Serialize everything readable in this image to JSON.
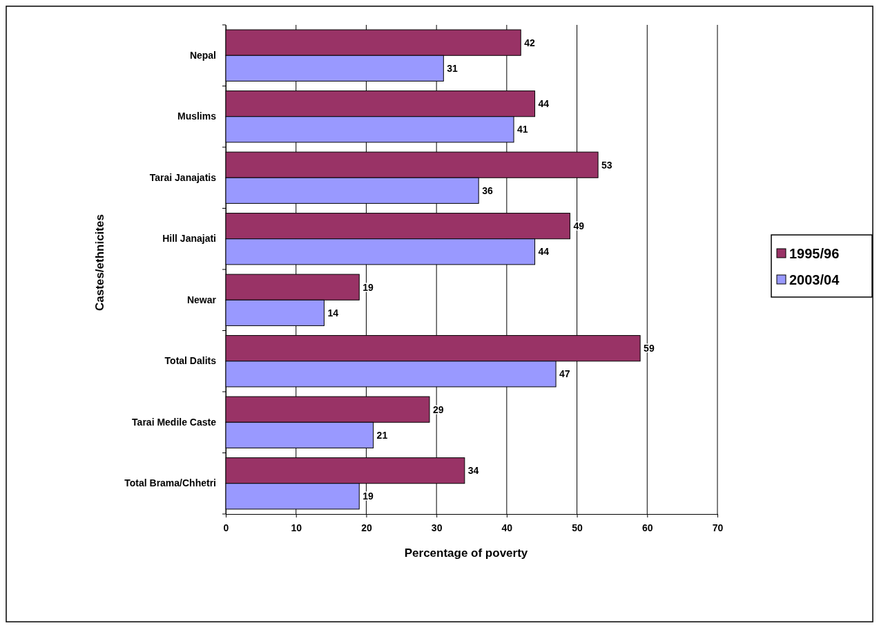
{
  "chart_data": {
    "type": "bar",
    "orientation": "horizontal",
    "xlabel": "Percentage of poverty",
    "ylabel": "Castes/ethnicites",
    "categories": [
      "Nepal",
      "Muslims",
      "Tarai Janajatis",
      "Hill Janajati",
      "Newar",
      "Total Dalits",
      "Tarai Medile Caste",
      "Total Brama/Chhetri"
    ],
    "series": [
      {
        "name": "1995/96",
        "color": "#993366",
        "values": [
          42,
          44,
          53,
          49,
          19,
          59,
          29,
          34
        ]
      },
      {
        "name": "2003/04",
        "color": "#9999ff",
        "values": [
          31,
          41,
          36,
          44,
          14,
          47,
          21,
          19
        ]
      }
    ],
    "xlim": [
      0,
      70
    ],
    "xticks": [
      0,
      10,
      20,
      30,
      40,
      50,
      60,
      70
    ],
    "grid": "x",
    "legend": "right",
    "data_labels": true
  }
}
